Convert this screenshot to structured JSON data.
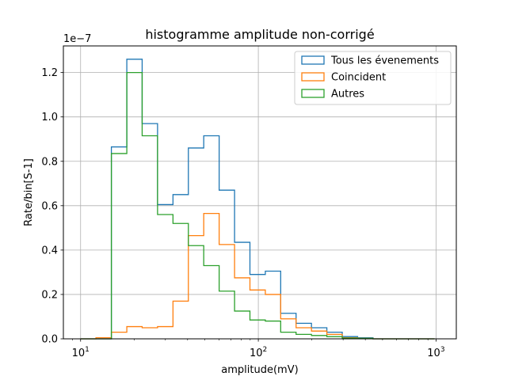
{
  "chart_data": {
    "type": "histogram",
    "title": "histogramme amplitude non-corrigé",
    "xlabel": "amplitude(mV)",
    "ylabel": "Rate/bin[S-1]",
    "y_offset_text": "1e−7",
    "x_scale": "log",
    "xlim": [
      8,
      1300
    ],
    "ylim": [
      0,
      1.32
    ],
    "y_multiplier": 1e-07,
    "grid": true,
    "legend_position": "top-right",
    "x_ticks": [
      {
        "value": 10,
        "base": "10",
        "exp": "1"
      },
      {
        "value": 100,
        "base": "10",
        "exp": "2"
      },
      {
        "value": 1000,
        "base": "10",
        "exp": "3"
      }
    ],
    "y_ticks": [
      "0.0",
      "0.2",
      "0.4",
      "0.6",
      "0.8",
      "1.0",
      "1.2"
    ],
    "bin_edges": [
      10,
      12.2,
      14.9,
      18.2,
      22.2,
      27.1,
      33.1,
      40.4,
      49.3,
      60.2,
      73.5,
      89.7,
      109.5,
      133.6,
      163.1,
      199.1,
      243.0,
      296.6,
      362.1,
      442.0,
      539.5,
      658.6,
      803.9,
      981.3
    ],
    "series": [
      {
        "name": "Tous les évenements",
        "color": "#1f77b4",
        "values": [
          0.0,
          0.0,
          0.865,
          1.26,
          0.97,
          0.605,
          0.65,
          0.86,
          0.915,
          0.67,
          0.435,
          0.29,
          0.305,
          0.115,
          0.07,
          0.05,
          0.03,
          0.01,
          0.005,
          0.0,
          0.0,
          0.0,
          0.0
        ]
      },
      {
        "name": "Coincident",
        "color": "#ff7f0e",
        "values": [
          0.0,
          0.005,
          0.03,
          0.055,
          0.05,
          0.055,
          0.17,
          0.465,
          0.565,
          0.425,
          0.275,
          0.22,
          0.2,
          0.09,
          0.05,
          0.035,
          0.02,
          0.005,
          0.002,
          0.0,
          0.0,
          0.0,
          0.0
        ]
      },
      {
        "name": "Autres",
        "color": "#2ca02c",
        "values": [
          0.0,
          0.0,
          0.835,
          1.2,
          0.915,
          0.56,
          0.52,
          0.42,
          0.33,
          0.215,
          0.125,
          0.085,
          0.08,
          0.03,
          0.02,
          0.015,
          0.01,
          0.003,
          0.002,
          0.0,
          0.0,
          0.0,
          0.0
        ]
      }
    ]
  }
}
